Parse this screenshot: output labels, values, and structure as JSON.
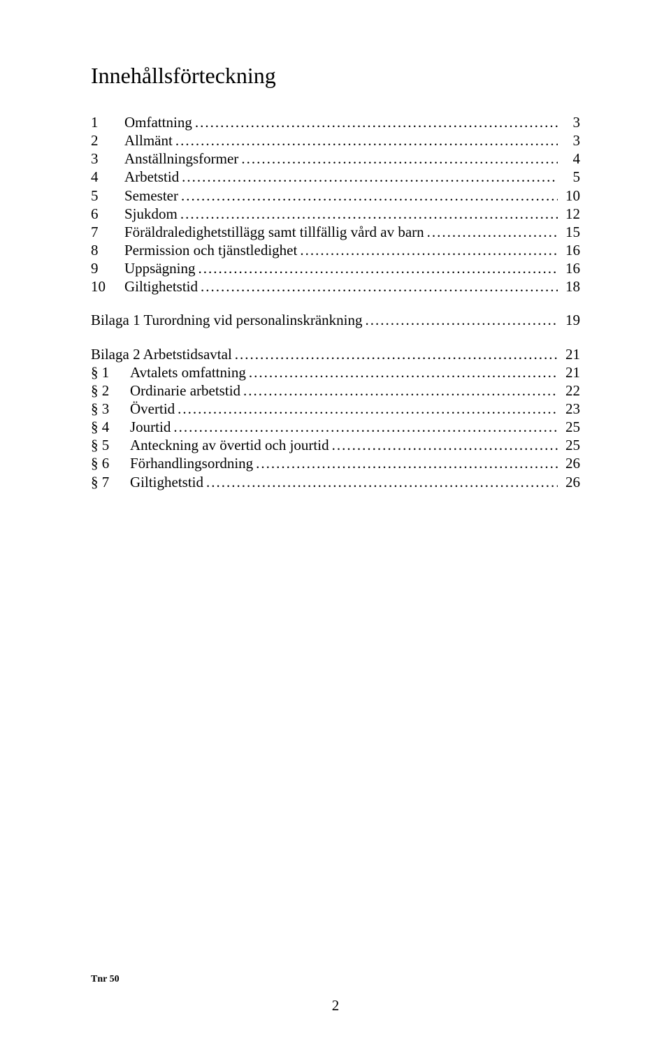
{
  "title": "Innehållsförteckning",
  "main": [
    {
      "num": "1",
      "label": "Omfattning",
      "page": "3"
    },
    {
      "num": "2",
      "label": "Allmänt",
      "page": "3"
    },
    {
      "num": "3",
      "label": "Anställningsformer",
      "page": "4"
    },
    {
      "num": "4",
      "label": "Arbetstid",
      "page": "5"
    },
    {
      "num": "5",
      "label": "Semester",
      "page": "10"
    },
    {
      "num": "6",
      "label": "Sjukdom",
      "page": "12"
    },
    {
      "num": "7",
      "label": "Föräldraledighetstillägg samt tillfällig vård av barn",
      "page": "15"
    },
    {
      "num": "8",
      "label": "Permission och tjänstledighet",
      "page": "16"
    },
    {
      "num": "9",
      "label": "Uppsägning",
      "page": "16"
    },
    {
      "num": "10",
      "label": "Giltighetstid",
      "page": "18"
    }
  ],
  "bilaga1": {
    "label": "Bilaga 1 Turordning vid personalinskränkning",
    "page": "19"
  },
  "bilaga2": {
    "heading": {
      "label": "Bilaga 2 Arbetstidsavtal",
      "page": "21"
    },
    "items": [
      {
        "num": "§ 1",
        "label": "Avtalets omfattning",
        "page": "21"
      },
      {
        "num": "§ 2",
        "label": "Ordinarie arbetstid",
        "page": "22"
      },
      {
        "num": "§ 3",
        "label": "Övertid",
        "page": "23"
      },
      {
        "num": "§ 4",
        "label": "Jourtid",
        "page": "25"
      },
      {
        "num": "§ 5",
        "label": "Anteckning av övertid och jourtid",
        "page": "25"
      },
      {
        "num": "§ 6",
        "label": "Förhandlingsordning",
        "page": "26"
      },
      {
        "num": "§ 7",
        "label": "Giltighetstid",
        "page": "26"
      }
    ]
  },
  "footer_left": "Tnr 50",
  "footer_page": "2"
}
